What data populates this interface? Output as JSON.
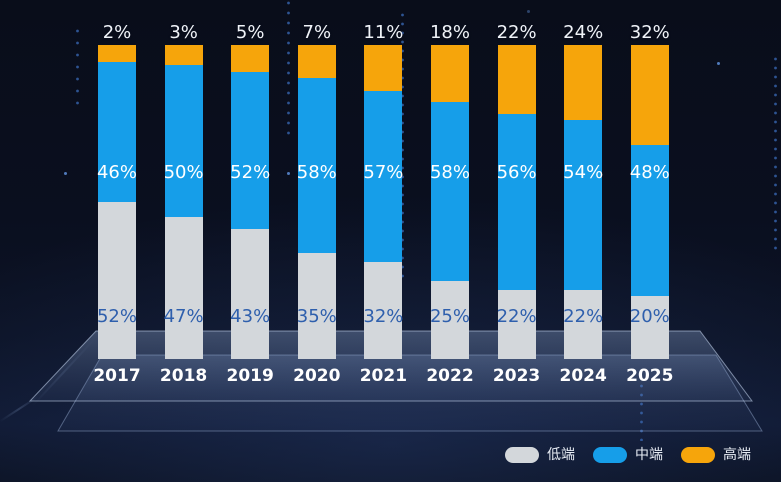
{
  "chart_data": {
    "type": "bar",
    "variant": "stacked-percentage-columns",
    "title": "",
    "categories": [
      "2017",
      "2018",
      "2019",
      "2020",
      "2021",
      "2022",
      "2023",
      "2024",
      "2025"
    ],
    "series": [
      {
        "name": "低端",
        "role": "bottom",
        "color": "#d3d7db",
        "label_color": "#2e5fad",
        "values": [
          52,
          47,
          43,
          35,
          32,
          25,
          22,
          22,
          20
        ]
      },
      {
        "name": "中端",
        "role": "middle",
        "color": "#169ee9",
        "label_color": "#ffffff",
        "values": [
          46,
          50,
          52,
          58,
          57,
          58,
          56,
          54,
          48
        ]
      },
      {
        "name": "高端",
        "role": "top",
        "color": "#f6a50b",
        "label_color": "#f0f3f8",
        "values": [
          2,
          3,
          5,
          7,
          11,
          18,
          22,
          24,
          32
        ]
      }
    ],
    "value_suffix": "%",
    "value_labels": "shown for every segment; top series labeled above each column",
    "axis": {
      "x_labels_visible": true,
      "y_axis_visible": false,
      "gridlines": false,
      "ylim": [
        0,
        100
      ]
    },
    "legend_position": "bottom-right"
  },
  "colors": {
    "background_top": "#0a0f1f",
    "background_bottom": "#0f1830",
    "floor_plane": "rgba(150,175,215,0.3)",
    "year_label": "#ffffff",
    "top_label": "#f0f3f8",
    "legend_text": "#e7ecf4",
    "decor_dots": "rgba(52,96,168,0.85)"
  }
}
